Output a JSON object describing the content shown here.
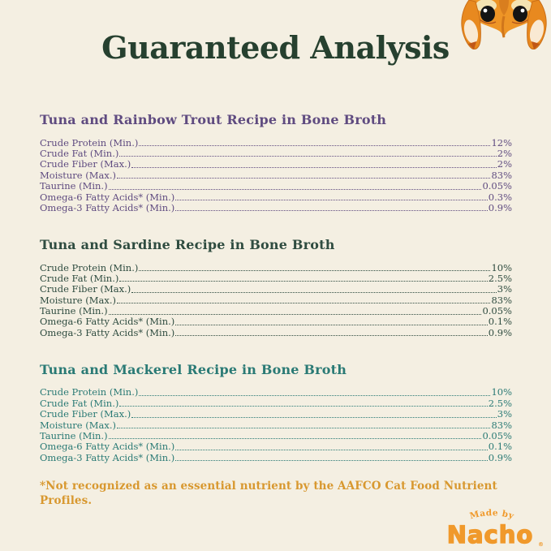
{
  "page": {
    "title": "Guaranteed Analysis",
    "footnote": "*Not recognized as an essential nutrient by the AAFCO Cat Food Nutrient Profiles."
  },
  "palette": {
    "background": "#F4EFE2",
    "title_text": "#26402F",
    "footnote_text": "#D8982F",
    "logo_orange": "#F0992B"
  },
  "sections": [
    {
      "heading": "Tuna and Rainbow Trout Recipe in Bone Broth",
      "color": "#5F4B80",
      "rows": [
        {
          "label": "Crude Protein (Min.)",
          "value": "12%"
        },
        {
          "label": "Crude Fat (Min.)",
          "value": "2%"
        },
        {
          "label": "Crude Fiber (Max.)",
          "value": "2%"
        },
        {
          "label": "Moisture (Max.)",
          "value": "83%"
        },
        {
          "label": "Taurine (Min.)",
          "value": "0.05%"
        },
        {
          "label": "Omega-6 Fatty Acids* (Min.)",
          "value": "0.3%"
        },
        {
          "label": "Omega-3 Fatty Acids* (Min.)",
          "value": "0.9%"
        }
      ]
    },
    {
      "heading": "Tuna and Sardine Recipe in Bone Broth",
      "color": "#2F4C40",
      "rows": [
        {
          "label": "Crude Protein (Min.)",
          "value": "10%"
        },
        {
          "label": "Crude Fat (Min.)",
          "value": "2.5%"
        },
        {
          "label": "Crude Fiber (Max.)",
          "value": "3%"
        },
        {
          "label": "Moisture (Max.)",
          "value": "83%"
        },
        {
          "label": "Taurine (Min.)",
          "value": "0.05%"
        },
        {
          "label": "Omega-6 Fatty Acids* (Min.)",
          "value": "0.1%"
        },
        {
          "label": "Omega-3 Fatty Acids* (Min.)",
          "value": "0.9%"
        }
      ]
    },
    {
      "heading": "Tuna and Mackerel Recipe in Bone Broth",
      "color": "#2A7A75",
      "rows": [
        {
          "label": "Crude Protein (Min.)",
          "value": "10%"
        },
        {
          "label": "Crude Fat (Min.)",
          "value": "2.5%"
        },
        {
          "label": "Crude Fiber (Max.)",
          "value": "3%"
        },
        {
          "label": "Moisture (Max.)",
          "value": "83%"
        },
        {
          "label": "Taurine (Min.)",
          "value": "0.05%"
        },
        {
          "label": "Omega-6 Fatty Acids* (Min.)",
          "value": "0.1%"
        },
        {
          "label": "Omega-3 Fatty Acids* (Min.)",
          "value": "0.9%"
        }
      ]
    }
  ],
  "logo": {
    "made_by": "Made by",
    "brand": "Nacho",
    "registered": "®"
  }
}
